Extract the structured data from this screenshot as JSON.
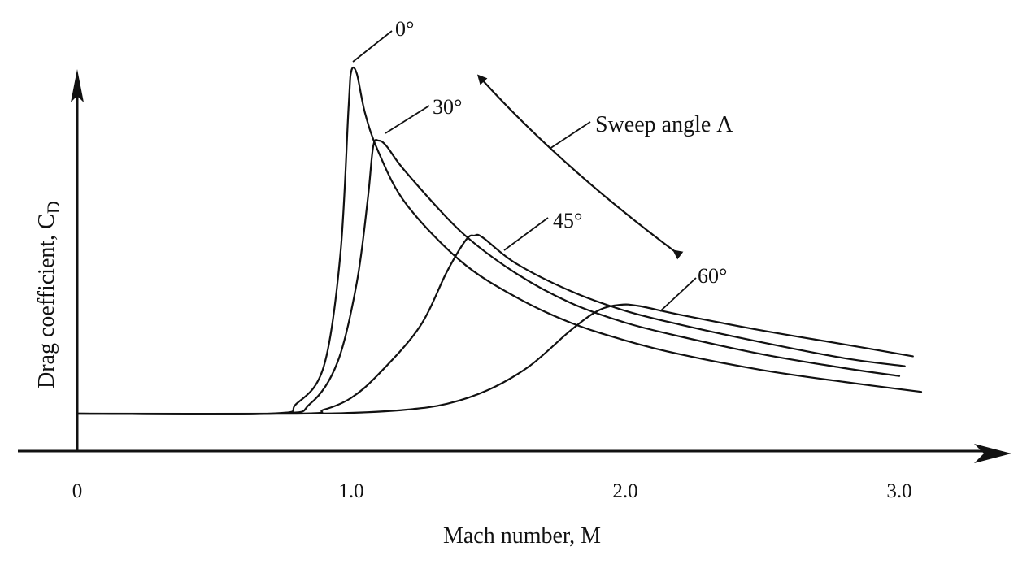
{
  "chart_data": {
    "type": "line",
    "xlabel": "Mach number, M",
    "ylabel_main": "Drag coefficient, C",
    "ylabel_sub": "D",
    "xlim": [
      0,
      3.2
    ],
    "ylim": [
      0,
      10
    ],
    "x_ticks": [
      {
        "value": 0,
        "label": "0"
      },
      {
        "value": 1,
        "label": "1.0"
      },
      {
        "value": 2,
        "label": "2.0"
      },
      {
        "value": 3,
        "label": "3.0"
      }
    ],
    "grid": false,
    "legend": "none",
    "annotation": {
      "text": "Sweep angle  Λ"
    },
    "series": [
      {
        "name": "0°",
        "points": [
          [
            0,
            1
          ],
          [
            0.7,
            1
          ],
          [
            0.8,
            1.25
          ],
          [
            0.9,
            2.2
          ],
          [
            0.96,
            5.0
          ],
          [
            0.99,
            8.7
          ],
          [
            1.0,
            9.65
          ],
          [
            1.02,
            9.6
          ],
          [
            1.05,
            8.6
          ],
          [
            1.1,
            7.6
          ],
          [
            1.2,
            6.3
          ],
          [
            1.4,
            4.85
          ],
          [
            1.6,
            3.95
          ],
          [
            1.8,
            3.3
          ],
          [
            2.0,
            2.85
          ],
          [
            2.2,
            2.5
          ],
          [
            2.5,
            2.1
          ],
          [
            2.8,
            1.8
          ],
          [
            3.08,
            1.55
          ]
        ]
      },
      {
        "name": "30°",
        "points": [
          [
            0,
            1
          ],
          [
            0.72,
            1
          ],
          [
            0.85,
            1.25
          ],
          [
            0.95,
            2.3
          ],
          [
            1.02,
            4.3
          ],
          [
            1.06,
            6.4
          ],
          [
            1.08,
            7.75
          ],
          [
            1.1,
            7.9
          ],
          [
            1.13,
            7.75
          ],
          [
            1.2,
            7.1
          ],
          [
            1.4,
            5.6
          ],
          [
            1.6,
            4.55
          ],
          [
            1.8,
            3.8
          ],
          [
            2.0,
            3.3
          ],
          [
            2.2,
            2.95
          ],
          [
            2.5,
            2.5
          ],
          [
            2.8,
            2.15
          ],
          [
            3.0,
            1.95
          ]
        ]
      },
      {
        "name": "45°",
        "points": [
          [
            0,
            1
          ],
          [
            0.8,
            1
          ],
          [
            0.9,
            1.1
          ],
          [
            1.0,
            1.4
          ],
          [
            1.1,
            2.0
          ],
          [
            1.25,
            3.2
          ],
          [
            1.35,
            4.6
          ],
          [
            1.42,
            5.4
          ],
          [
            1.45,
            5.5
          ],
          [
            1.48,
            5.45
          ],
          [
            1.6,
            4.8
          ],
          [
            1.8,
            4.1
          ],
          [
            2.0,
            3.6
          ],
          [
            2.2,
            3.25
          ],
          [
            2.5,
            2.8
          ],
          [
            2.8,
            2.4
          ],
          [
            3.02,
            2.2
          ]
        ]
      },
      {
        "name": "60°",
        "points": [
          [
            0,
            1
          ],
          [
            0.8,
            1
          ],
          [
            1.0,
            1.02
          ],
          [
            1.2,
            1.1
          ],
          [
            1.35,
            1.25
          ],
          [
            1.5,
            1.6
          ],
          [
            1.65,
            2.2
          ],
          [
            1.8,
            3.1
          ],
          [
            1.9,
            3.6
          ],
          [
            1.98,
            3.75
          ],
          [
            2.05,
            3.72
          ],
          [
            2.2,
            3.5
          ],
          [
            2.5,
            3.1
          ],
          [
            2.8,
            2.75
          ],
          [
            3.05,
            2.45
          ]
        ]
      }
    ]
  }
}
